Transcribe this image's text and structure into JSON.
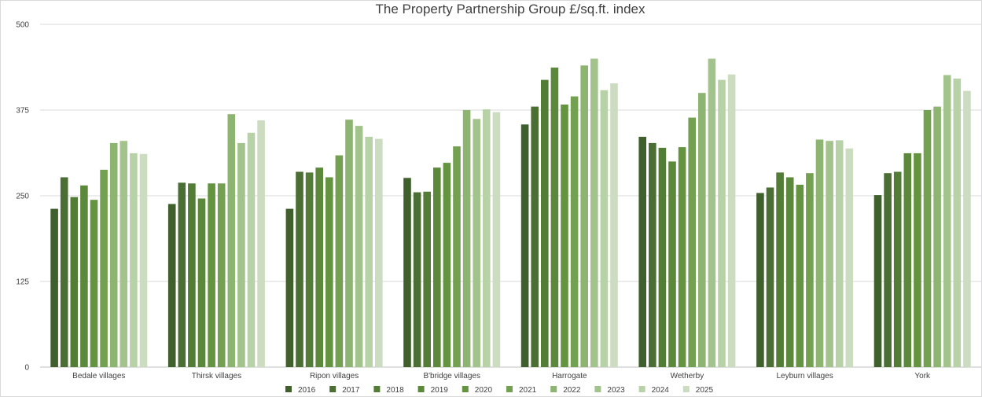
{
  "chart_data": {
    "type": "bar",
    "title": "The Property Partnership Group £/sq.ft. index",
    "xlabel": "",
    "ylabel": "",
    "ylim": [
      0,
      500
    ],
    "yticks": [
      0,
      125,
      250,
      375,
      500
    ],
    "grid": true,
    "legend_position": "bottom",
    "categories": [
      "Bedale villages",
      "Thirsk villages",
      "Ripon villages",
      "B'bridge villages",
      "Harrogate",
      "Wetherby",
      "Leyburn villages",
      "York"
    ],
    "series": [
      {
        "name": "2016",
        "color": "#3f5f2d",
        "values": [
          231,
          238,
          231,
          276,
          354,
          336,
          254,
          251
        ]
      },
      {
        "name": "2017",
        "color": "#4a6e33",
        "values": [
          277,
          269,
          285,
          255,
          380,
          327,
          262,
          283
        ]
      },
      {
        "name": "2018",
        "color": "#537c37",
        "values": [
          248,
          268,
          284,
          256,
          419,
          320,
          284,
          285
        ]
      },
      {
        "name": "2019",
        "color": "#5c883b",
        "values": [
          265,
          246,
          291,
          291,
          437,
          300,
          277,
          312
        ]
      },
      {
        "name": "2020",
        "color": "#659440",
        "values": [
          244,
          268,
          277,
          298,
          383,
          321,
          266,
          312
        ]
      },
      {
        "name": "2021",
        "color": "#74a052",
        "values": [
          288,
          268,
          309,
          322,
          395,
          364,
          283,
          375
        ]
      },
      {
        "name": "2022",
        "color": "#8db471",
        "values": [
          327,
          369,
          361,
          375,
          440,
          400,
          332,
          380
        ]
      },
      {
        "name": "2023",
        "color": "#a2c38b",
        "values": [
          330,
          327,
          352,
          362,
          450,
          450,
          330,
          426
        ]
      },
      {
        "name": "2024",
        "color": "#b8d2a7",
        "values": [
          312,
          342,
          336,
          376,
          404,
          419,
          331,
          421
        ]
      },
      {
        "name": "2025",
        "color": "#cbdcc0",
        "values": [
          311,
          360,
          333,
          372,
          414,
          427,
          319,
          403
        ]
      }
    ]
  }
}
